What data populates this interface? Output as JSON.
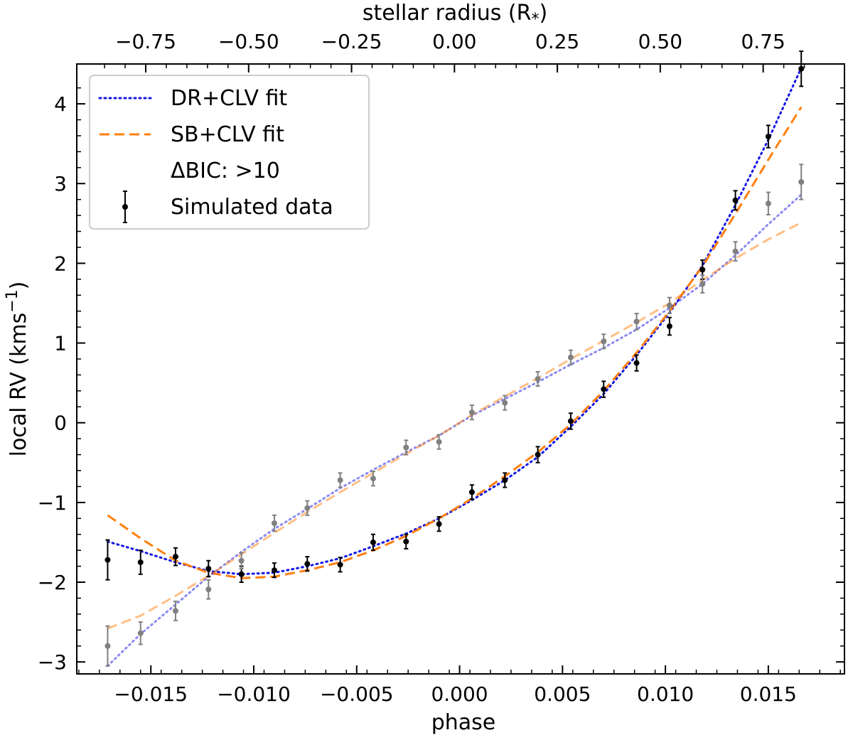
{
  "chart_data": {
    "type": "line",
    "xlabel": "phase",
    "ylabel": "local RV (kms",
    "ylabel_sup": "−1",
    "ylabel_close": ")",
    "top_xlabel": "stellar radius (R",
    "top_xlabel_sub": "*",
    "top_xlabel_close": ")",
    "xlim": [
      -0.0186,
      0.0187
    ],
    "ylim": [
      -3.15,
      4.5
    ],
    "x_ticks": [
      {
        "v": -0.015,
        "label": "−0.015"
      },
      {
        "v": -0.01,
        "label": "−0.010"
      },
      {
        "v": -0.005,
        "label": "−0.005"
      },
      {
        "v": 0.0,
        "label": "0.000"
      },
      {
        "v": 0.005,
        "label": "0.005"
      },
      {
        "v": 0.01,
        "label": "0.010"
      },
      {
        "v": 0.015,
        "label": "0.015"
      }
    ],
    "y_ticks": [
      {
        "v": -3,
        "label": "−3"
      },
      {
        "v": -2,
        "label": "−2"
      },
      {
        "v": -1,
        "label": "−1"
      },
      {
        "v": 0,
        "label": "0"
      },
      {
        "v": 1,
        "label": "1"
      },
      {
        "v": 2,
        "label": "2"
      },
      {
        "v": 3,
        "label": "3"
      },
      {
        "v": 4,
        "label": "4"
      }
    ],
    "top_ticks": [
      {
        "phase": -0.01525,
        "label": "−0.75"
      },
      {
        "phase": -0.01025,
        "label": "−0.50"
      },
      {
        "phase": -0.00525,
        "label": "−0.25"
      },
      {
        "phase": -0.00025,
        "label": "0.00"
      },
      {
        "phase": 0.00475,
        "label": "0.25"
      },
      {
        "phase": 0.00975,
        "label": "0.50"
      },
      {
        "phase": 0.01475,
        "label": "0.75"
      }
    ],
    "legend": {
      "position": "upper-left",
      "entries": [
        {
          "label": "DR+CLV fit",
          "style": "dotted",
          "color": "#1515e6"
        },
        {
          "label": "SB+CLV fit",
          "style": "dashed",
          "color": "#ff7f0e"
        },
        {
          "label": "ΔBIC: >10",
          "style": "none",
          "color": ""
        },
        {
          "label": "Simulated data",
          "style": "errorbar",
          "color": "#000000"
        }
      ]
    },
    "series": [
      {
        "name": "DR+CLV fit",
        "kind": "line",
        "style": "dotted",
        "color": "#1515e6",
        "opacity": 1.0,
        "x": [
          -0.0171,
          -0.0155,
          -0.0138,
          -0.0122,
          -0.0106,
          -0.009,
          -0.0074,
          -0.0058,
          -0.0042,
          -0.0026,
          -0.001,
          0.0006,
          0.0022,
          0.0038,
          0.0054,
          0.007,
          0.0086,
          0.0102,
          0.0118,
          0.0134,
          0.015,
          0.0166
        ],
        "y": [
          -1.49,
          -1.61,
          -1.75,
          -1.86,
          -1.9,
          -1.88,
          -1.8,
          -1.7,
          -1.55,
          -1.39,
          -1.2,
          -0.97,
          -0.72,
          -0.43,
          -0.05,
          0.36,
          0.85,
          1.38,
          1.97,
          2.73,
          3.55,
          4.45
        ]
      },
      {
        "name": "SB+CLV fit",
        "kind": "line",
        "style": "dashed",
        "color": "#ff7f0e",
        "opacity": 1.0,
        "x": [
          -0.0171,
          -0.0155,
          -0.0138,
          -0.0122,
          -0.0106,
          -0.009,
          -0.0074,
          -0.0058,
          -0.0042,
          -0.0026,
          -0.001,
          0.0006,
          0.0022,
          0.0038,
          0.0054,
          0.007,
          0.0086,
          0.0102,
          0.0118,
          0.0134,
          0.015,
          0.0166
        ],
        "y": [
          -1.16,
          -1.45,
          -1.73,
          -1.88,
          -1.95,
          -1.93,
          -1.85,
          -1.75,
          -1.6,
          -1.42,
          -1.2,
          -0.95,
          -0.67,
          -0.37,
          -0.02,
          0.4,
          0.88,
          1.4,
          1.96,
          2.62,
          3.3,
          3.96
        ]
      },
      {
        "name": "",
        "kind": "line",
        "style": "dotted",
        "color": "#1515e6",
        "opacity": 0.5,
        "x": [
          -0.0171,
          -0.0155,
          -0.0138,
          -0.0122,
          -0.0106,
          -0.009,
          -0.0074,
          -0.0058,
          -0.0042,
          -0.0026,
          -0.001,
          0.0006,
          0.0022,
          0.0038,
          0.0054,
          0.007,
          0.0086,
          0.0102,
          0.0118,
          0.0134,
          0.015,
          0.0166
        ],
        "y": [
          -3.05,
          -2.65,
          -2.28,
          -1.93,
          -1.62,
          -1.33,
          -1.08,
          -0.82,
          -0.59,
          -0.37,
          -0.16,
          0.09,
          0.3,
          0.51,
          0.73,
          0.94,
          1.17,
          1.44,
          1.74,
          2.1,
          2.49,
          2.86
        ]
      },
      {
        "name": "",
        "kind": "line",
        "style": "dashed",
        "color": "#ff7f0e",
        "opacity": 0.5,
        "x": [
          -0.0171,
          -0.0155,
          -0.0138,
          -0.0122,
          -0.0106,
          -0.009,
          -0.0074,
          -0.0058,
          -0.0042,
          -0.0026,
          -0.001,
          0.0006,
          0.0022,
          0.0038,
          0.0054,
          0.007,
          0.0086,
          0.0102,
          0.0118,
          0.0134,
          0.015,
          0.0166
        ],
        "y": [
          -2.58,
          -2.42,
          -2.17,
          -1.92,
          -1.65,
          -1.38,
          -1.12,
          -0.87,
          -0.63,
          -0.39,
          -0.16,
          0.1,
          0.33,
          0.56,
          0.8,
          1.03,
          1.26,
          1.5,
          1.79,
          2.06,
          2.3,
          2.51
        ]
      },
      {
        "name": "Simulated data",
        "kind": "errorbar",
        "color": "#000000",
        "x": [
          -0.0171,
          -0.0155,
          -0.0138,
          -0.0122,
          -0.0106,
          -0.009,
          -0.0074,
          -0.0058,
          -0.0042,
          -0.0026,
          -0.001,
          0.0006,
          0.0022,
          0.0038,
          0.0054,
          0.007,
          0.0086,
          0.0102,
          0.0118,
          0.0134,
          0.015,
          0.0166
        ],
        "y": [
          -1.72,
          -1.75,
          -1.68,
          -1.83,
          -1.9,
          -1.85,
          -1.77,
          -1.78,
          -1.5,
          -1.49,
          -1.27,
          -0.87,
          -0.72,
          -0.4,
          0.02,
          0.42,
          0.75,
          1.21,
          1.92,
          2.79,
          3.59,
          4.44
        ],
        "err": [
          0.25,
          0.15,
          0.11,
          0.1,
          0.1,
          0.09,
          0.09,
          0.09,
          0.1,
          0.09,
          0.09,
          0.09,
          0.09,
          0.1,
          0.1,
          0.1,
          0.1,
          0.11,
          0.12,
          0.12,
          0.14,
          0.22
        ]
      },
      {
        "name": "",
        "kind": "errorbar",
        "color": "#808080",
        "x": [
          -0.0171,
          -0.0155,
          -0.0138,
          -0.0122,
          -0.0106,
          -0.009,
          -0.0074,
          -0.0058,
          -0.0042,
          -0.0026,
          -0.001,
          0.0006,
          0.0022,
          0.0038,
          0.0054,
          0.007,
          0.0086,
          0.0102,
          0.0118,
          0.0134,
          0.015,
          0.0166
        ],
        "y": [
          -2.8,
          -2.64,
          -2.36,
          -2.09,
          -1.73,
          -1.26,
          -1.07,
          -0.72,
          -0.7,
          -0.31,
          -0.24,
          0.13,
          0.25,
          0.55,
          0.82,
          1.02,
          1.27,
          1.47,
          1.74,
          2.15,
          2.75,
          3.02
        ],
        "err": [
          0.25,
          0.14,
          0.12,
          0.12,
          0.1,
          0.1,
          0.09,
          0.09,
          0.09,
          0.09,
          0.09,
          0.09,
          0.09,
          0.09,
          0.09,
          0.09,
          0.1,
          0.1,
          0.11,
          0.12,
          0.14,
          0.22
        ]
      }
    ]
  }
}
